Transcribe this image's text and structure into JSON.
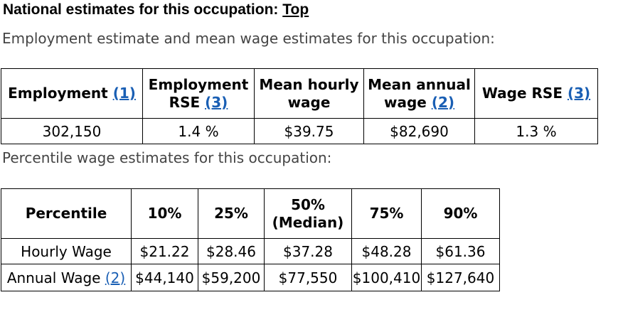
{
  "heading": {
    "text": "National estimates for this occupation:",
    "link": "Top"
  },
  "intro_employment": "Employment estimate and mean wage estimates for this occupation:",
  "employment_table": {
    "headers": [
      {
        "text": "Employment",
        "footnote": "(1)"
      },
      {
        "line1": "Employment",
        "line2": "RSE",
        "footnote": "(3)"
      },
      {
        "line1": "Mean hourly",
        "line2": "wage"
      },
      {
        "line1": "Mean annual",
        "line2": "wage",
        "footnote": "(2)"
      },
      {
        "text": "Wage RSE",
        "footnote": "(3)"
      }
    ],
    "row": [
      "302,150",
      "1.4 %",
      "$39.75",
      "$82,690",
      "1.3 %"
    ]
  },
  "intro_percentile": "Percentile wage estimates for this occupation:",
  "percentile_table": {
    "headers": [
      "Percentile",
      "10%",
      "25%",
      "50%",
      "(Median)",
      "75%",
      "90%"
    ],
    "hourly": {
      "label": "Hourly Wage",
      "values": [
        "$21.22",
        "$28.46",
        "$37.28",
        "$48.28",
        "$61.36"
      ]
    },
    "annual": {
      "label": "Annual Wage",
      "footnote": "(2)",
      "values": [
        "$44,140",
        "$59,200",
        "$77,550",
        "$100,410",
        "$127,640"
      ]
    }
  }
}
